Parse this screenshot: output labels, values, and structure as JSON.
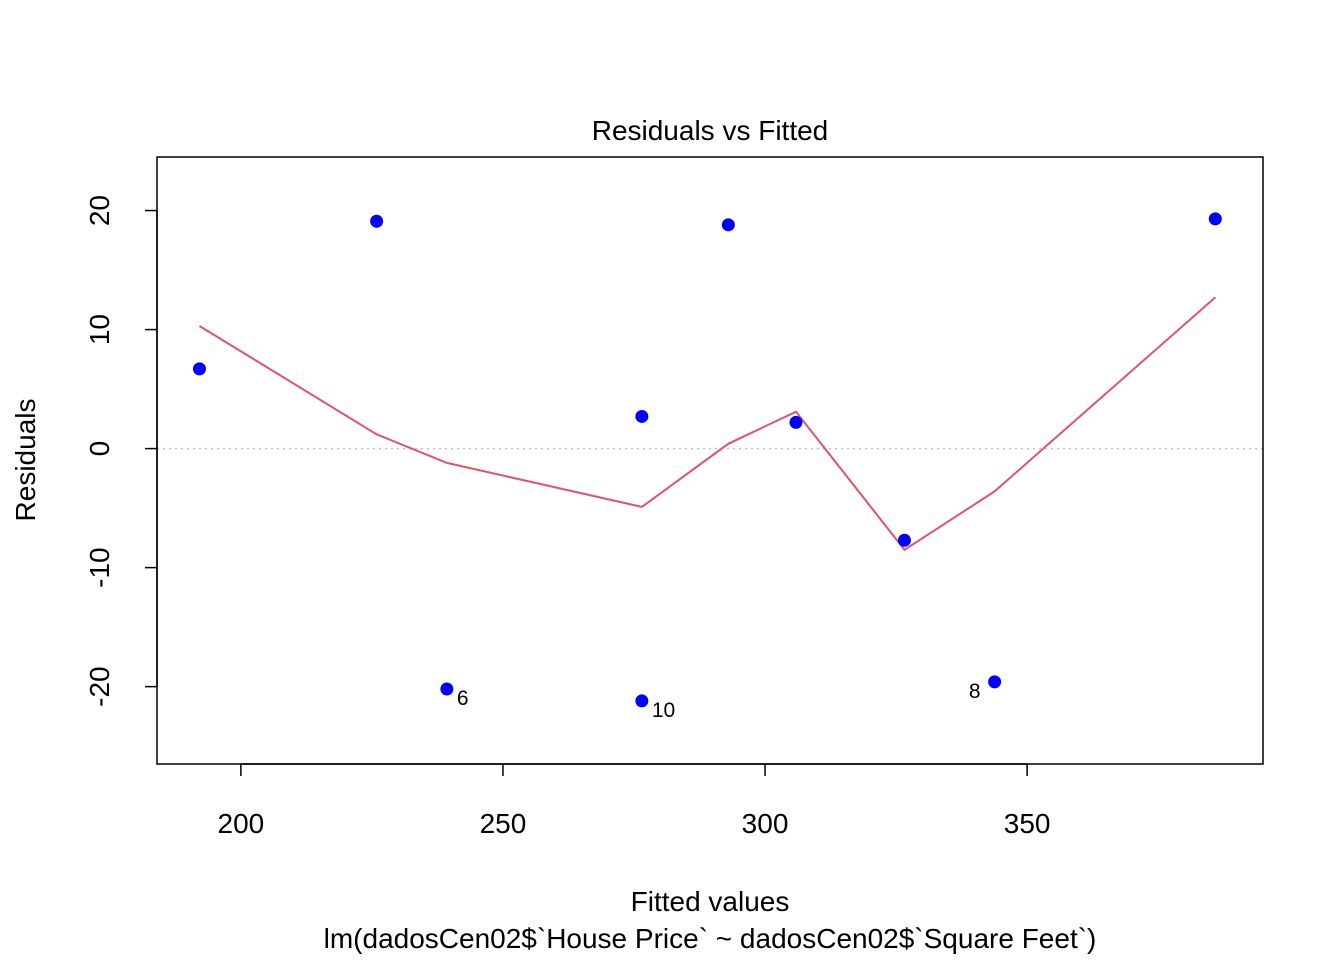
{
  "chart_data": {
    "type": "scatter",
    "title": "Residuals vs Fitted",
    "xlabel": "Fitted values",
    "subtitle": "lm(dadosCen02$`House Price` ~ dadosCen02$`Square Feet`)",
    "ylabel": "Residuals",
    "xlim": [
      184,
      395
    ],
    "ylim": [
      -26.5,
      24.5
    ],
    "x_ticks": [
      200,
      250,
      300,
      350
    ],
    "x_tick_labels": [
      "200",
      "250",
      "300",
      "350"
    ],
    "y_ticks": [
      -20,
      -10,
      0,
      10,
      20
    ],
    "y_tick_labels": [
      "-20",
      "-10",
      "0",
      "10",
      "20"
    ],
    "grid": false,
    "points": [
      {
        "x": 192.1,
        "y": 6.7
      },
      {
        "x": 225.9,
        "y": 19.1
      },
      {
        "x": 239.3,
        "y": -20.2,
        "label": "6"
      },
      {
        "x": 276.5,
        "y": 2.7
      },
      {
        "x": 276.5,
        "y": -21.2,
        "label": "10"
      },
      {
        "x": 293.0,
        "y": 18.8
      },
      {
        "x": 305.9,
        "y": 2.2
      },
      {
        "x": 326.6,
        "y": -7.7
      },
      {
        "x": 343.8,
        "y": -19.6,
        "label": "8"
      },
      {
        "x": 385.9,
        "y": 19.3
      }
    ],
    "smoother": [
      {
        "x": 192.1,
        "y": 10.3
      },
      {
        "x": 225.9,
        "y": 1.2
      },
      {
        "x": 239.3,
        "y": -1.2
      },
      {
        "x": 276.5,
        "y": -4.9
      },
      {
        "x": 293.0,
        "y": 0.4
      },
      {
        "x": 305.9,
        "y": 3.1
      },
      {
        "x": 326.6,
        "y": -8.5
      },
      {
        "x": 343.8,
        "y": -3.6
      },
      {
        "x": 385.9,
        "y": 12.7
      }
    ],
    "reference_line_y": 0,
    "colors": {
      "points": "#0000ff",
      "smoother": "#df536b",
      "reference_line": "#bebebe",
      "axis": "#000000"
    }
  }
}
